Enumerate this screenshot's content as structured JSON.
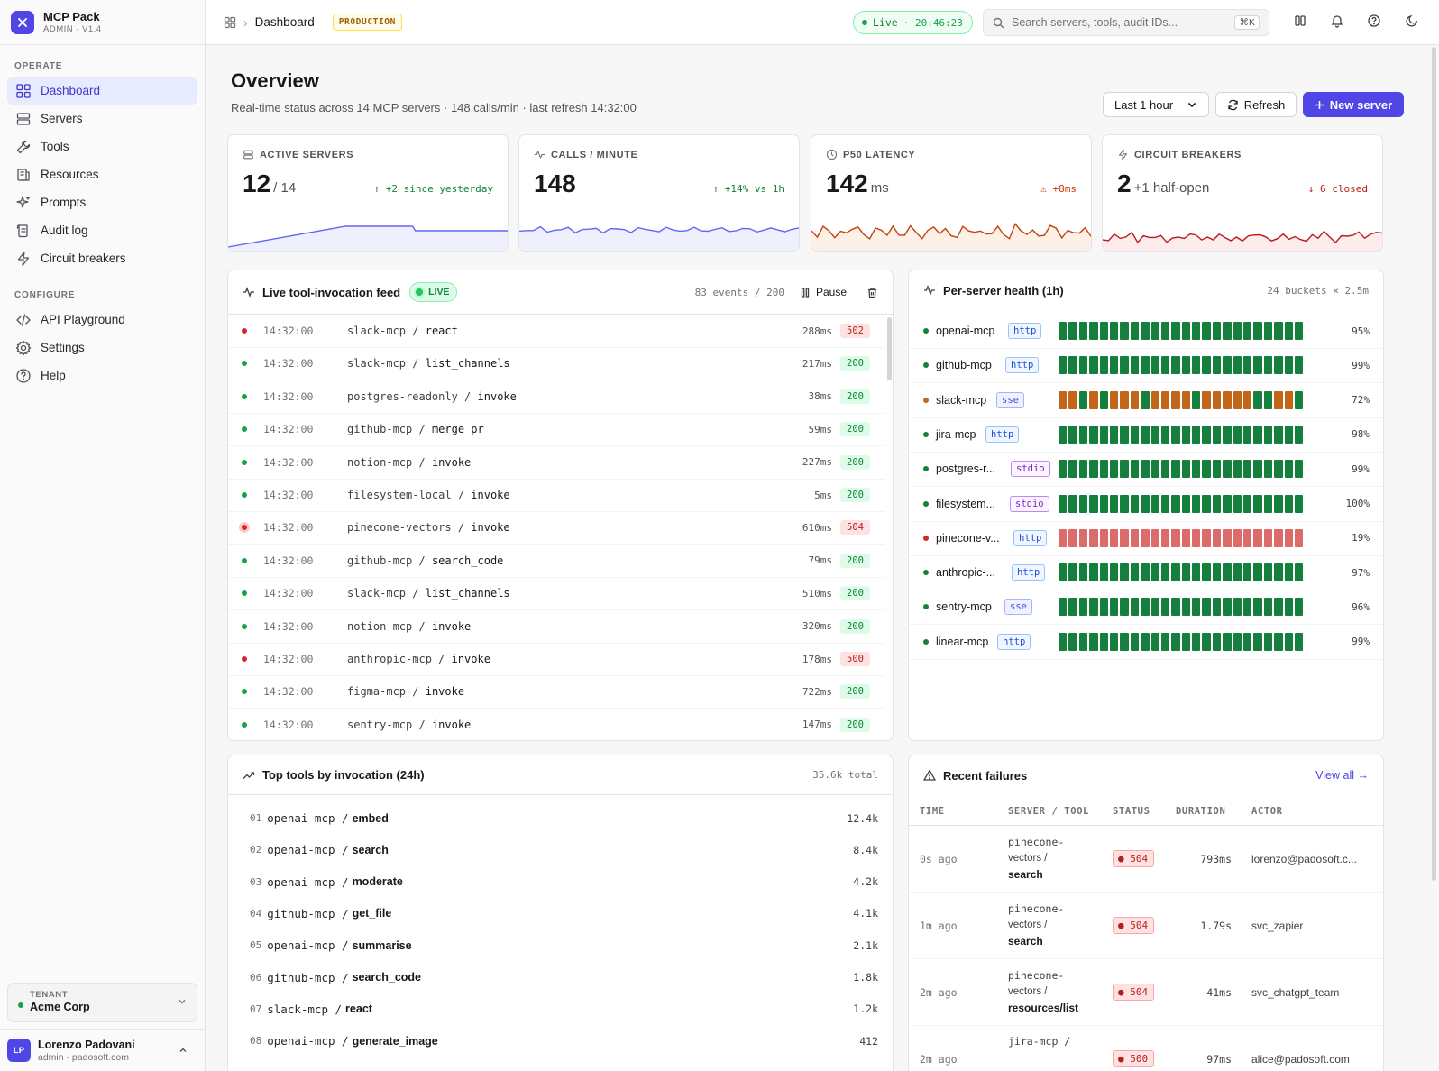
{
  "brand": {
    "name": "MCP Pack",
    "sub": "ADMIN · V1.4"
  },
  "nav": {
    "operate_label": "OPERATE",
    "operate": [
      {
        "label": "Dashboard",
        "icon": "grid-icon",
        "active": true
      },
      {
        "label": "Servers",
        "icon": "server-icon"
      },
      {
        "label": "Tools",
        "icon": "wrench-icon"
      },
      {
        "label": "Resources",
        "icon": "database-icon"
      },
      {
        "label": "Prompts",
        "icon": "sparkle-icon"
      },
      {
        "label": "Audit log",
        "icon": "scroll-icon"
      },
      {
        "label": "Circuit breakers",
        "icon": "zap-icon"
      }
    ],
    "configure_label": "CONFIGURE",
    "configure": [
      {
        "label": "API Playground",
        "icon": "code-icon"
      },
      {
        "label": "Settings",
        "icon": "gear-icon"
      },
      {
        "label": "Help",
        "icon": "help-icon"
      }
    ]
  },
  "tenant": {
    "label": "TENANT",
    "value": "Acme Corp"
  },
  "user": {
    "initials": "LP",
    "name": "Lorenzo Padovani",
    "sub": "admin · padosoft.com"
  },
  "topbar": {
    "breadcrumb": "Dashboard",
    "env": "PRODUCTION",
    "live_label": "Live",
    "live_time": "· 20:46:23",
    "search_placeholder": "Search servers, tools, audit IDs...",
    "search_kbd": "⌘K"
  },
  "header": {
    "title": "Overview",
    "subtitle": "Real-time status across 14 MCP servers · 148 calls/min · last refresh 14:32:00",
    "range": "Last 1 hour",
    "refresh": "Refresh",
    "new_server": "New server"
  },
  "stats": [
    {
      "label": "ACTIVE SERVERS",
      "icon": "server-icon",
      "value": "12",
      "suffix": "/ 14",
      "delta": "↑ +2 since yesterday",
      "delta_color": "#15803d",
      "line": "#6366f1",
      "fill": "#eef0fe"
    },
    {
      "label": "CALLS / MINUTE",
      "icon": "activity-icon",
      "value": "148",
      "suffix": "",
      "delta": "↑ +14% vs 1h",
      "delta_color": "#15803d",
      "line": "#6366f1",
      "fill": "#eef0fe"
    },
    {
      "label": "P50 LATENCY",
      "icon": "clock-icon",
      "value": "142",
      "suffix": "ms",
      "delta": "⚠ +8ms",
      "delta_color": "#c2410c",
      "line": "#c2410c",
      "fill": "#fdf0e6"
    },
    {
      "label": "CIRCUIT BREAKERS",
      "icon": "zap-icon",
      "value": "2",
      "suffix": "+1 half-open",
      "delta": "↓ 6 closed",
      "delta_color": "#b91c1c",
      "line": "#b91c1c",
      "fill": "#fdecec"
    }
  ],
  "feed": {
    "title": "Live tool-invocation feed",
    "live": "LIVE",
    "count": "83 events / 200",
    "pause": "Pause",
    "rows": [
      {
        "time": "14:32:00",
        "server": "slack-mcp",
        "tool": "react",
        "ms": "288ms",
        "code": "502",
        "ok": false
      },
      {
        "time": "14:32:00",
        "server": "slack-mcp",
        "tool": "list_channels",
        "ms": "217ms",
        "code": "200",
        "ok": true
      },
      {
        "time": "14:32:00",
        "server": "postgres-readonly",
        "tool": "invoke",
        "ms": "38ms",
        "code": "200",
        "ok": true
      },
      {
        "time": "14:32:00",
        "server": "github-mcp",
        "tool": "merge_pr",
        "ms": "59ms",
        "code": "200",
        "ok": true
      },
      {
        "time": "14:32:00",
        "server": "notion-mcp",
        "tool": "invoke",
        "ms": "227ms",
        "code": "200",
        "ok": true
      },
      {
        "time": "14:32:00",
        "server": "filesystem-local",
        "tool": "invoke",
        "ms": "5ms",
        "code": "200",
        "ok": true
      },
      {
        "time": "14:32:00",
        "server": "pinecone-vectors",
        "tool": "invoke",
        "ms": "610ms",
        "code": "504",
        "ok": false
      },
      {
        "time": "14:32:00",
        "server": "github-mcp",
        "tool": "search_code",
        "ms": "79ms",
        "code": "200",
        "ok": true
      },
      {
        "time": "14:32:00",
        "server": "slack-mcp",
        "tool": "list_channels",
        "ms": "510ms",
        "code": "200",
        "ok": true
      },
      {
        "time": "14:32:00",
        "server": "notion-mcp",
        "tool": "invoke",
        "ms": "320ms",
        "code": "200",
        "ok": true
      },
      {
        "time": "14:32:00",
        "server": "anthropic-mcp",
        "tool": "invoke",
        "ms": "178ms",
        "code": "500",
        "ok": false
      },
      {
        "time": "14:32:00",
        "server": "figma-mcp",
        "tool": "invoke",
        "ms": "722ms",
        "code": "200",
        "ok": true
      },
      {
        "time": "14:32:00",
        "server": "sentry-mcp",
        "tool": "invoke",
        "ms": "147ms",
        "code": "200",
        "ok": true
      }
    ]
  },
  "health": {
    "title": "Per-server health (1h)",
    "meta": "24 buckets × 2.5m",
    "rows": [
      {
        "name": "openai-mcp",
        "type": "http",
        "pct": "95%",
        "status": "ok",
        "pattern": "gggggggggggggggggggggggg"
      },
      {
        "name": "github-mcp",
        "type": "http",
        "pct": "99%",
        "status": "ok",
        "pattern": "gggggggggggggggggggggggg"
      },
      {
        "name": "slack-mcp",
        "type": "sse",
        "pct": "72%",
        "status": "warn",
        "pattern": "oogogooogoooogoooooggoog"
      },
      {
        "name": "jira-mcp",
        "type": "http",
        "pct": "98%",
        "status": "ok",
        "pattern": "gggggggggggggggggggggggg"
      },
      {
        "name": "postgres-r...",
        "type": "stdio",
        "pct": "99%",
        "status": "ok",
        "pattern": "gggggggggggggggggggggggg"
      },
      {
        "name": "filesystem...",
        "type": "stdio",
        "pct": "100%",
        "status": "ok",
        "pattern": "gggggggggggggggggggggggg"
      },
      {
        "name": "pinecone-v...",
        "type": "http",
        "pct": "19%",
        "status": "down",
        "pattern": "rrrrrrrrrrrrrrrrrrrrrrrr"
      },
      {
        "name": "anthropic-...",
        "type": "http",
        "pct": "97%",
        "status": "ok",
        "pattern": "gggggggggggggggggggggggg"
      },
      {
        "name": "sentry-mcp",
        "type": "sse",
        "pct": "96%",
        "status": "ok",
        "pattern": "gggggggggggggggggggggggg"
      },
      {
        "name": "linear-mcp",
        "type": "http",
        "pct": "99%",
        "status": "ok",
        "pattern": "gggggggggggggggggggggggg"
      }
    ]
  },
  "top_tools": {
    "title": "Top tools by invocation (24h)",
    "total": "35.6k total",
    "rows": [
      {
        "rank": "01",
        "server": "openai-mcp /",
        "tool": "embed",
        "count": "12.4k"
      },
      {
        "rank": "02",
        "server": "openai-mcp /",
        "tool": "search",
        "count": "8.4k"
      },
      {
        "rank": "03",
        "server": "openai-mcp /",
        "tool": "moderate",
        "count": "4.2k"
      },
      {
        "rank": "04",
        "server": "github-mcp /",
        "tool": "get_file",
        "count": "4.1k"
      },
      {
        "rank": "05",
        "server": "openai-mcp /",
        "tool": "summarise",
        "count": "2.1k"
      },
      {
        "rank": "06",
        "server": "github-mcp /",
        "tool": "search_code",
        "count": "1.8k"
      },
      {
        "rank": "07",
        "server": "slack-mcp /",
        "tool": "react",
        "count": "1.2k"
      },
      {
        "rank": "08",
        "server": "openai-mcp /",
        "tool": "generate_image",
        "count": "412"
      }
    ]
  },
  "failures": {
    "title": "Recent failures",
    "view_all": "View all →",
    "columns": [
      "TIME",
      "SERVER / TOOL",
      "STATUS",
      "DURATION",
      "ACTOR"
    ],
    "rows": [
      {
        "ago": "0s ago",
        "l1": "pinecone-",
        "l2": "vectors /",
        "tool": "search",
        "status": "● 504",
        "dur": "793ms",
        "actor": "lorenzo@padosoft.c..."
      },
      {
        "ago": "1m ago",
        "l1": "pinecone-",
        "l2": "vectors /",
        "tool": "search",
        "status": "● 504",
        "dur": "1.79s",
        "actor": "svc_zapier"
      },
      {
        "ago": "2m ago",
        "l1": "pinecone-",
        "l2": "vectors /",
        "tool": "resources/list",
        "status": "● 504",
        "dur": "41ms",
        "actor": "svc_chatgpt_team"
      },
      {
        "ago": "2m ago",
        "l1": "jira-mcp /",
        "l2": "",
        "tool": "",
        "status": "● 500",
        "dur": "97ms",
        "actor": "alice@padosoft.com"
      }
    ]
  },
  "colors": {
    "accent": "#4f46e5",
    "ok": "#15803d",
    "warn": "#c2661a",
    "bad": "#dc6b6b"
  }
}
